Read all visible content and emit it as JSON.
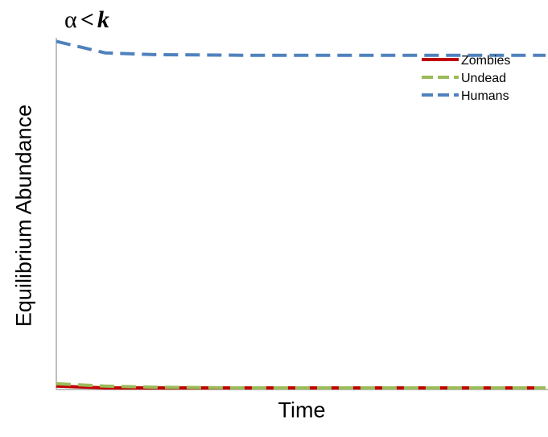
{
  "chart_data": {
    "type": "line",
    "title": {
      "alpha": "α",
      "relation": "<",
      "k": "k"
    },
    "xlabel": "Time",
    "ylabel": "Equilibrium Abundance",
    "ylim": [
      0,
      1
    ],
    "grid": false,
    "legend_position": "top-right",
    "x": [
      0,
      1,
      2,
      3,
      4,
      5,
      6,
      7,
      8,
      9,
      10
    ],
    "series": [
      {
        "name": "Zombies",
        "color": "#c00000",
        "dash": "solid",
        "values": [
          0.005,
          0,
          0,
          0,
          0,
          0,
          0,
          0,
          0,
          0,
          0
        ]
      },
      {
        "name": "Undead",
        "color": "#9bbb59",
        "dash": "dashed",
        "values": [
          0.012,
          0.005,
          0.002,
          0.001,
          0,
          0,
          0,
          0,
          0,
          0,
          0
        ]
      },
      {
        "name": "Humans",
        "color": "#4f81bd",
        "dash": "dashed",
        "values": [
          0.99,
          0.957,
          0.952,
          0.951,
          0.95,
          0.95,
          0.95,
          0.95,
          0.95,
          0.95,
          0.95
        ]
      }
    ]
  }
}
